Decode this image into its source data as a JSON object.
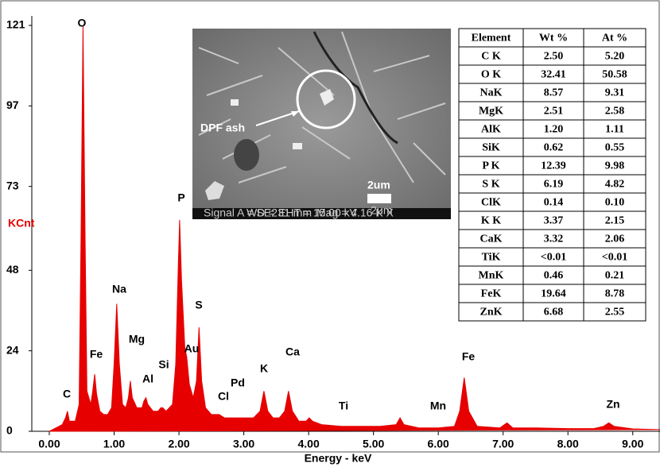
{
  "chart_data": {
    "type": "area",
    "x_label": "Energy - keV",
    "y_label": "KCnt",
    "color": "#e60000",
    "x": [
      0.0,
      0.1,
      0.2,
      0.25,
      0.28,
      0.31,
      0.4,
      0.46,
      0.49,
      0.52,
      0.55,
      0.58,
      0.64,
      0.67,
      0.7,
      0.73,
      0.78,
      0.84,
      0.9,
      0.96,
      1.0,
      1.04,
      1.08,
      1.13,
      1.18,
      1.22,
      1.25,
      1.28,
      1.35,
      1.43,
      1.46,
      1.49,
      1.52,
      1.6,
      1.68,
      1.72,
      1.75,
      1.8,
      1.9,
      1.95,
      1.99,
      2.01,
      2.04,
      2.09,
      2.12,
      2.16,
      2.22,
      2.27,
      2.31,
      2.35,
      2.41,
      2.5,
      2.6,
      2.62,
      2.7,
      2.85,
      3.0,
      3.15,
      3.25,
      3.31,
      3.37,
      3.45,
      3.55,
      3.63,
      3.69,
      3.75,
      3.85,
      3.96,
      4.01,
      4.06,
      4.2,
      4.5,
      4.8,
      5.1,
      5.35,
      5.41,
      5.47,
      5.7,
      6.0,
      6.25,
      6.33,
      6.4,
      6.47,
      6.6,
      6.95,
      7.06,
      7.15,
      7.5,
      8.0,
      8.4,
      8.55,
      8.63,
      8.71,
      9.0,
      9.42
    ],
    "values": [
      0,
      1,
      2,
      4,
      6,
      3,
      3,
      8,
      60,
      121,
      60,
      12,
      8,
      12,
      17,
      11,
      6,
      5,
      5,
      7,
      20,
      38,
      20,
      8,
      7,
      10,
      15,
      10,
      7,
      7,
      9,
      10,
      8,
      6,
      6,
      7,
      7,
      6,
      8,
      20,
      50,
      63,
      45,
      25,
      22,
      14,
      10,
      15,
      31,
      15,
      7,
      5,
      5,
      5,
      4,
      4,
      4,
      4,
      6,
      12,
      6,
      4,
      4,
      6,
      12,
      6,
      3,
      3,
      4,
      3,
      2,
      1.5,
      1.5,
      1.5,
      2,
      4,
      2,
      1,
      1,
      1.5,
      6,
      16,
      6,
      1.5,
      1,
      2.5,
      1,
      1,
      0.8,
      0.8,
      1.5,
      2.5,
      1.5,
      0.7,
      0.5
    ],
    "xlim": [
      -0.27,
      9.42
    ],
    "ylim": [
      0,
      121
    ],
    "xticks": [
      {
        "value": 0,
        "label": "0.00"
      },
      {
        "value": 1,
        "label": "1.00"
      },
      {
        "value": 2,
        "label": "2.00"
      },
      {
        "value": 3,
        "label": "3.00"
      },
      {
        "value": 4,
        "label": "4.00"
      },
      {
        "value": 5,
        "label": "5.00"
      },
      {
        "value": 6,
        "label": "6.00"
      },
      {
        "value": 7,
        "label": "7.00"
      },
      {
        "value": 8,
        "label": "8.00"
      },
      {
        "value": 9,
        "label": "9.00"
      }
    ],
    "yticks": [
      0,
      24,
      48,
      73,
      97,
      121
    ],
    "annotations": [
      "C",
      "O",
      "Fe",
      "Na",
      "Mg",
      "Al",
      "Si",
      "Au",
      "P",
      "S",
      "Cl",
      "Pd",
      "K",
      "Ca",
      "Ti",
      "Mn",
      "Fe",
      "Zn"
    ]
  },
  "inset": {
    "label": "DPF ash",
    "scale": "2um",
    "footer": [
      "Signal A = SE2",
      "WD = 31 mm",
      "EHT = 15.00 kV",
      "Mag = 4.16 K X",
      "2μm"
    ]
  },
  "table": {
    "header": [
      "Element",
      "Wt %",
      "At %"
    ],
    "rows": [
      [
        "C K",
        "2.50",
        "5.20"
      ],
      [
        "O K",
        "32.41",
        "50.58"
      ],
      [
        "NaK",
        "8.57",
        "9.31"
      ],
      [
        "MgK",
        "2.51",
        "2.58"
      ],
      [
        "AlK",
        "1.20",
        "1.11"
      ],
      [
        "SiK",
        "0.62",
        "0.55"
      ],
      [
        "P K",
        "12.39",
        "9.98"
      ],
      [
        "S K",
        "6.19",
        "4.82"
      ],
      [
        "ClK",
        "0.14",
        "0.10"
      ],
      [
        "K K",
        "3.37",
        "2.15"
      ],
      [
        "CaK",
        "3.32",
        "2.06"
      ],
      [
        "TiK",
        "<0.01",
        "<0.01"
      ],
      [
        "MnK",
        "0.46",
        "0.21"
      ],
      [
        "FeK",
        "19.64",
        "8.78"
      ],
      [
        "ZnK",
        "6.68",
        "2.55"
      ]
    ]
  }
}
